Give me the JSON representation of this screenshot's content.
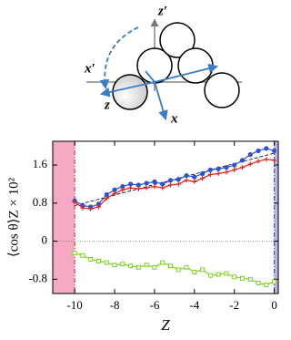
{
  "diagram": {
    "labels": [
      "z′",
      "x′",
      "z",
      "x"
    ]
  },
  "chart_data": {
    "type": "line",
    "xlabel": "Z",
    "ylabel": "⟨cos θ⟩Z × 10²",
    "xlim": [
      -11.1,
      0.2
    ],
    "ylim": [
      -1.1,
      2.1
    ],
    "xticks": [
      -10,
      -8,
      -6,
      -4,
      -2,
      0
    ],
    "yticks": [
      -0.8,
      0,
      0.8,
      1.6
    ],
    "zero_line": true,
    "shaded_regions": [
      {
        "from": -11.1,
        "to": -10,
        "color": "#f5a9c4"
      },
      {
        "from": 0,
        "to": 0.2,
        "color": "#b9b6ec"
      }
    ],
    "vlines": [
      {
        "x": -10,
        "color": "#e0202a"
      },
      {
        "x": 0,
        "color": "#2a3fd0"
      }
    ],
    "fit_line": {
      "x": [
        -10,
        0
      ],
      "y": [
        0.75,
        1.85
      ],
      "color": "#000"
    },
    "x": [
      -10,
      -9.6,
      -9.2,
      -8.8,
      -8.4,
      -8,
      -7.6,
      -7.2,
      -6.8,
      -6.4,
      -6,
      -5.6,
      -5.2,
      -4.8,
      -4.4,
      -4,
      -3.6,
      -3.2,
      -2.8,
      -2.4,
      -2,
      -1.6,
      -1.2,
      -0.8,
      -0.4,
      0
    ],
    "series": [
      {
        "color": "#2f4fd6",
        "marker": "circle",
        "values": [
          0.85,
          0.75,
          0.72,
          0.78,
          0.98,
          1.08,
          1.15,
          1.2,
          1.18,
          1.22,
          1.25,
          1.2,
          1.28,
          1.3,
          1.38,
          1.35,
          1.42,
          1.5,
          1.52,
          1.55,
          1.6,
          1.7,
          1.82,
          1.9,
          1.95,
          1.9
        ]
      },
      {
        "color": "#e8231f",
        "marker": "plus",
        "values": [
          0.82,
          0.7,
          0.68,
          0.72,
          0.9,
          1.0,
          1.08,
          1.12,
          1.1,
          1.12,
          1.15,
          1.12,
          1.18,
          1.2,
          1.28,
          1.25,
          1.32,
          1.4,
          1.42,
          1.45,
          1.5,
          1.55,
          1.62,
          1.68,
          1.72,
          1.7
        ]
      },
      {
        "color": "#7ed321",
        "marker": "square",
        "values": [
          -0.25,
          -0.3,
          -0.38,
          -0.42,
          -0.45,
          -0.5,
          -0.48,
          -0.52,
          -0.55,
          -0.5,
          -0.55,
          -0.45,
          -0.52,
          -0.6,
          -0.55,
          -0.65,
          -0.6,
          -0.72,
          -0.7,
          -0.68,
          -0.75,
          -0.78,
          -0.8,
          -0.88,
          -0.92,
          -0.85
        ]
      }
    ]
  }
}
